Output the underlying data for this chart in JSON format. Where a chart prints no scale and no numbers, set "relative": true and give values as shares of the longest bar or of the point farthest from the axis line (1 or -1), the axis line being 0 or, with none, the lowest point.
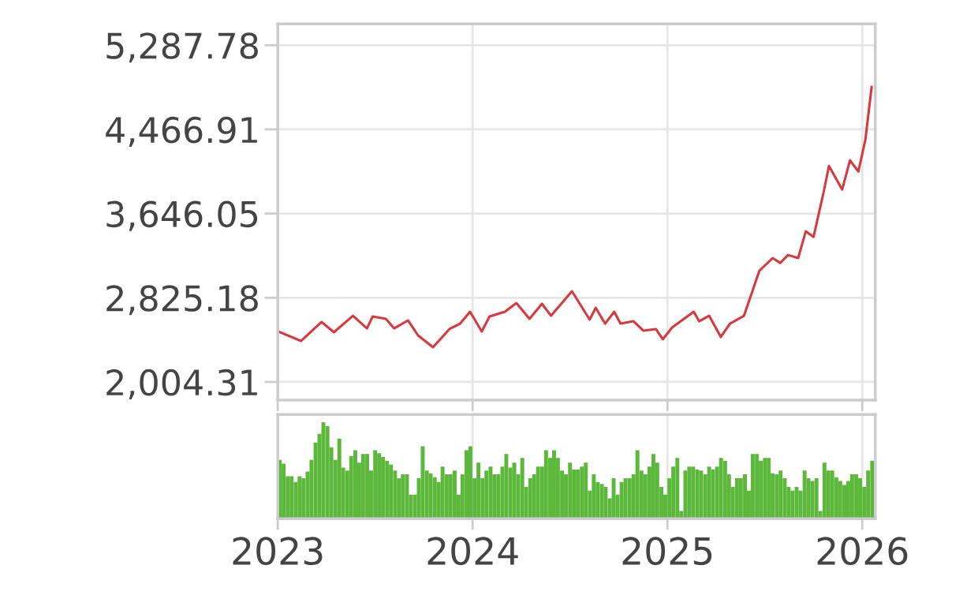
{
  "chart_data": [
    {
      "type": "line",
      "x": [
        2023.004,
        2023.119,
        2023.225,
        2023.288,
        2023.386,
        2023.458,
        2023.487,
        2023.555,
        2023.597,
        2023.669,
        2023.72,
        2023.797,
        2023.881,
        2023.936,
        2023.987,
        2024.047,
        2024.087,
        2024.166,
        2024.225,
        2024.292,
        2024.356,
        2024.403,
        2024.51,
        2024.601,
        2024.632,
        2024.68,
        2024.727,
        2024.759,
        2024.826,
        2024.877,
        2024.941,
        2024.976,
        2025.024,
        2025.135,
        2025.163,
        2025.214,
        2025.274,
        2025.321,
        2025.393,
        2025.425,
        2025.472,
        2025.54,
        2025.579,
        2025.619,
        2025.671,
        2025.71,
        2025.75,
        2025.802,
        2025.829,
        2025.897,
        2025.937,
        2025.98,
        2026.016,
        2026.048
      ],
      "series": [
        {
          "color": "#d8393f",
          "values": [
            2496,
            2404,
            2589,
            2489,
            2650,
            2527,
            2643,
            2620,
            2527,
            2604,
            2458,
            2343,
            2520,
            2573,
            2689,
            2496,
            2643,
            2689,
            2773,
            2620,
            2766,
            2650,
            2889,
            2612,
            2727,
            2573,
            2689,
            2573,
            2596,
            2504,
            2520,
            2420,
            2535,
            2689,
            2596,
            2650,
            2443,
            2573,
            2650,
            2827,
            3089,
            3212,
            3165,
            3242,
            3212,
            3473,
            3419,
            3857,
            4111,
            3880,
            4165,
            4057,
            4365,
            4880
          ]
        }
      ],
      "xlim": [
        2023,
        2026.067
      ],
      "xticks": [
        2023,
        2024,
        2025,
        2026
      ],
      "ylim": [
        1827,
        5495
      ],
      "yticks": [
        {
          "value": 2004.31,
          "label": "2,004.31"
        },
        {
          "value": 2825.18,
          "label": "2,825.18"
        },
        {
          "value": 3646.05,
          "label": "3,646.05"
        },
        {
          "value": 4466.91,
          "label": "4,466.91"
        },
        {
          "value": 5287.78,
          "label": "5,287.78"
        }
      ],
      "tick_labels": "y",
      "grid": true,
      "legend": false,
      "marker": "none",
      "line_style": "solid"
    },
    {
      "type": "bar",
      "relative": true,
      "color": "#5cb83b",
      "x": [
        2023.01,
        2023.03,
        2023.051,
        2023.071,
        2023.092,
        2023.112,
        2023.132,
        2023.153,
        2023.173,
        2023.194,
        2023.214,
        2023.234,
        2023.255,
        2023.275,
        2023.296,
        2023.316,
        2023.336,
        2023.357,
        2023.377,
        2023.398,
        2023.418,
        2023.438,
        2023.459,
        2023.479,
        2023.5,
        2023.52,
        2023.54,
        2023.561,
        2023.581,
        2023.602,
        2023.622,
        2023.642,
        2023.663,
        2023.683,
        2023.704,
        2023.724,
        2023.744,
        2023.765,
        2023.785,
        2023.806,
        2023.826,
        2023.846,
        2023.867,
        2023.887,
        2023.908,
        2023.928,
        2023.948,
        2023.969,
        2023.989,
        2024.01,
        2024.03,
        2024.051,
        2024.071,
        2024.092,
        2024.112,
        2024.132,
        2024.153,
        2024.173,
        2024.194,
        2024.214,
        2024.234,
        2024.255,
        2024.275,
        2024.296,
        2024.316,
        2024.336,
        2024.357,
        2024.377,
        2024.398,
        2024.418,
        2024.438,
        2024.459,
        2024.479,
        2024.5,
        2024.52,
        2024.54,
        2024.561,
        2024.581,
        2024.602,
        2024.622,
        2024.642,
        2024.663,
        2024.683,
        2024.704,
        2024.724,
        2024.744,
        2024.765,
        2024.785,
        2024.806,
        2024.826,
        2024.846,
        2024.867,
        2024.887,
        2024.908,
        2024.928,
        2024.948,
        2024.969,
        2024.989,
        2025.01,
        2025.03,
        2025.051,
        2025.071,
        2025.092,
        2025.112,
        2025.132,
        2025.153,
        2025.173,
        2025.194,
        2025.214,
        2025.234,
        2025.255,
        2025.275,
        2025.296,
        2025.316,
        2025.336,
        2025.357,
        2025.377,
        2025.398,
        2025.418,
        2025.438,
        2025.459,
        2025.479,
        2025.5,
        2025.52,
        2025.54,
        2025.561,
        2025.581,
        2025.602,
        2025.622,
        2025.642,
        2025.663,
        2025.683,
        2025.704,
        2025.724,
        2025.744,
        2025.765,
        2025.785,
        2025.806,
        2025.826,
        2025.846,
        2025.867,
        2025.887,
        2025.908,
        2025.928,
        2025.948,
        2025.969,
        2025.989,
        2026.01,
        2026.03,
        2026.051
      ],
      "values": [
        0.61,
        0.57,
        0.44,
        0.44,
        0.38,
        0.44,
        0.42,
        0.49,
        0.61,
        0.79,
        0.88,
        1.0,
        0.96,
        0.74,
        0.61,
        0.83,
        0.53,
        0.5,
        0.65,
        0.71,
        0.58,
        0.67,
        0.67,
        0.5,
        0.71,
        0.68,
        0.64,
        0.6,
        0.56,
        0.5,
        0.42,
        0.46,
        0.46,
        0.25,
        0.25,
        0.42,
        0.75,
        0.5,
        0.47,
        0.43,
        0.38,
        0.54,
        0.46,
        0.46,
        0.5,
        0.25,
        0.46,
        0.71,
        0.75,
        0.42,
        0.58,
        0.42,
        0.5,
        0.54,
        0.46,
        0.46,
        0.54,
        0.67,
        0.53,
        0.58,
        0.46,
        0.63,
        0.33,
        0.42,
        0.46,
        0.54,
        0.54,
        0.71,
        0.63,
        0.71,
        0.63,
        0.5,
        0.46,
        0.58,
        0.51,
        0.51,
        0.54,
        0.58,
        0.29,
        0.46,
        0.38,
        0.36,
        0.33,
        0.21,
        0.42,
        0.25,
        0.38,
        0.42,
        0.42,
        0.46,
        0.71,
        0.5,
        0.46,
        0.54,
        0.67,
        0.58,
        0.33,
        0.25,
        0.42,
        0.54,
        0.63,
        0.08,
        0.5,
        0.54,
        0.54,
        0.51,
        0.5,
        0.46,
        0.54,
        0.51,
        0.54,
        0.63,
        0.6,
        0.46,
        0.33,
        0.42,
        0.42,
        0.46,
        0.29,
        0.67,
        0.67,
        0.6,
        0.63,
        0.63,
        0.47,
        0.46,
        0.5,
        0.42,
        0.33,
        0.29,
        0.33,
        0.29,
        0.5,
        0.42,
        0.39,
        0.42,
        0.08,
        0.58,
        0.5,
        0.5,
        0.43,
        0.39,
        0.35,
        0.39,
        0.46,
        0.46,
        0.42,
        0.33,
        0.5,
        0.6
      ],
      "xlim": [
        2023,
        2026.067
      ],
      "xticks": [
        2023,
        2024,
        2025,
        2026
      ],
      "tick_labels": "x",
      "grid": "x",
      "legend": false
    }
  ]
}
